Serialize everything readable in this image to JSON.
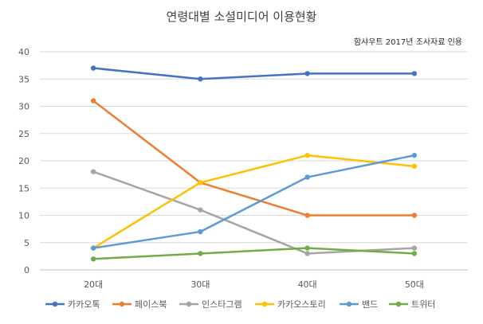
{
  "chart_data": {
    "type": "line",
    "title": "연령대별 소셜미디어 이용현황",
    "note": "함샤우트 2017년 조사자료 인용",
    "categories": [
      "20대",
      "30대",
      "40대",
      "50대"
    ],
    "ylim": [
      0,
      40
    ],
    "yticks": [
      0,
      5,
      10,
      15,
      20,
      25,
      30,
      35,
      40
    ],
    "grid": true,
    "legend_position": "bottom",
    "series": [
      {
        "name": "카카오톡",
        "color": "#4472C4",
        "values": [
          37,
          35,
          36,
          36
        ]
      },
      {
        "name": "페이스북",
        "color": "#ED7D31",
        "values": [
          31,
          16,
          10,
          10
        ]
      },
      {
        "name": "인스타그램",
        "color": "#A5A5A5",
        "values": [
          18,
          11,
          3,
          4
        ]
      },
      {
        "name": "카카오스토리",
        "color": "#FFC000",
        "values": [
          4,
          16,
          21,
          19
        ]
      },
      {
        "name": "밴드",
        "color": "#5B9BD5",
        "values": [
          4,
          7,
          17,
          21
        ]
      },
      {
        "name": "트위터",
        "color": "#70AD47",
        "values": [
          2,
          3,
          4,
          3
        ]
      }
    ]
  }
}
